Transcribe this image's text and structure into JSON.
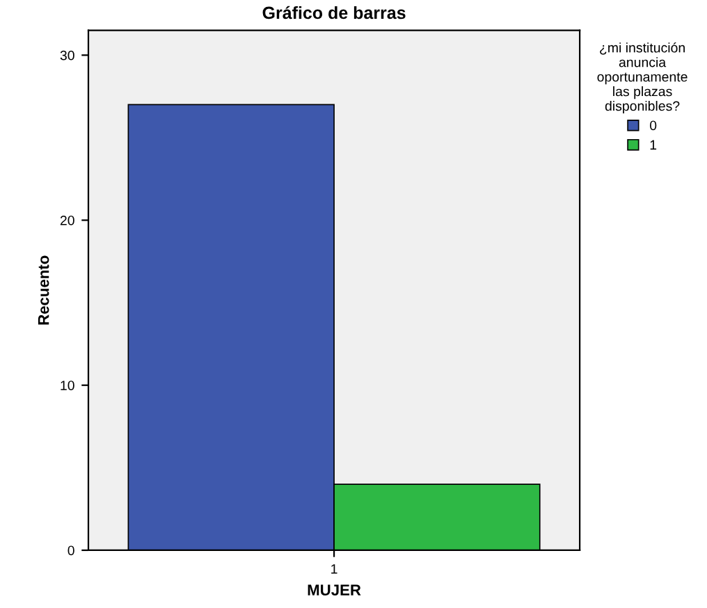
{
  "chart_data": {
    "type": "bar",
    "title": "Gráfico de barras",
    "xlabel": "MUJER",
    "ylabel": "Recuento",
    "legend_title": "¿mi institución\nanuncia\noportunamente\nlas plazas\ndisponibles?",
    "categories": [
      "1"
    ],
    "series": [
      {
        "name": "0",
        "color": "#3e58ac",
        "values": [
          27
        ]
      },
      {
        "name": "1",
        "color": "#2eb845",
        "values": [
          4
        ]
      }
    ],
    "ylim": [
      0,
      31.5
    ],
    "yticks": [
      0,
      10,
      20,
      30
    ],
    "grid": false,
    "legend": "right"
  }
}
